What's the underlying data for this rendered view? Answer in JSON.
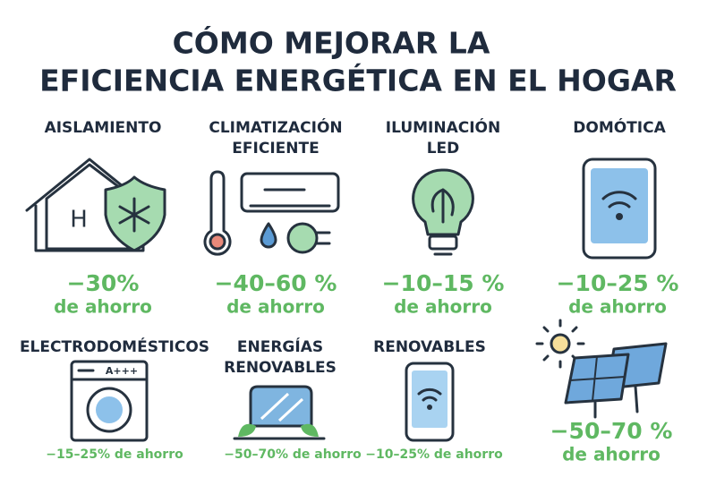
{
  "title": [
    "CÓMO MEJORAR LA",
    "EFICIENCIA ENERGÉTICA EN EL HOGAR"
  ],
  "items": [
    {
      "label": [
        "AISLAMIENTO"
      ],
      "saving": "−30%",
      "note": "de ahorro"
    },
    {
      "label": [
        "CLIMATIZACIÓN",
        "EFICIENTE"
      ],
      "saving": "−40–60 %",
      "note": "de ahorro"
    },
    {
      "label": [
        "ILUMINACIÓN",
        "LED"
      ],
      "saving": "−10–15 %",
      "note": "de ahorro"
    },
    {
      "label": [
        "DOMÓTICA"
      ],
      "saving": "−10–25 %",
      "note": "de ahorro"
    },
    {
      "label": [
        "ELECTRODOMÉSTICOS"
      ],
      "saving": "−15–25% de ahorro",
      "appliance_rating": "A+++"
    },
    {
      "label": [
        "ENERGÍAS",
        "RENOVABLES"
      ],
      "saving": "−50–70% de ahorro"
    },
    {
      "label": [
        "RENOVABLES"
      ],
      "saving": "−10–25% de ahorro"
    },
    {
      "saving": "−50–70 %",
      "note": "de ahorro"
    }
  ]
}
